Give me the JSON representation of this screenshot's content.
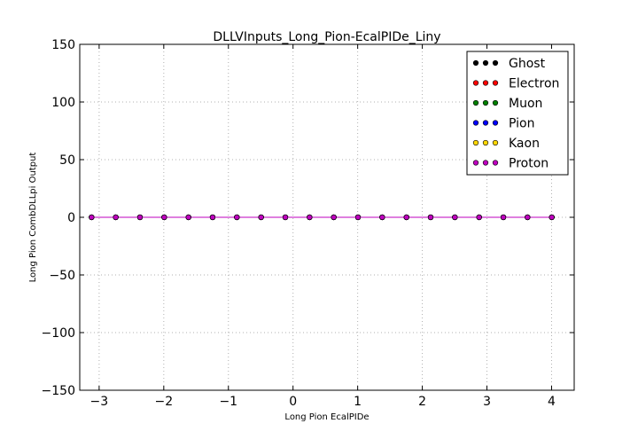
{
  "chart_data": {
    "type": "scatter",
    "title": "DLLVInputs_Long_Pion-EcalPIDe_Liny",
    "xlabel": "Long Pion EcalPIDe",
    "ylabel": "Long Pion CombDLLpi Output",
    "xlim": [
      -3.3,
      4.35
    ],
    "ylim": [
      -150,
      150
    ],
    "xticks": [
      -3,
      -2,
      -1,
      0,
      1,
      2,
      3,
      4
    ],
    "xtick_labels": [
      "−3",
      "−2",
      "−1",
      "0",
      "1",
      "2",
      "3",
      "4"
    ],
    "yticks": [
      -150,
      -100,
      -50,
      0,
      50,
      100,
      150
    ],
    "ytick_labels": [
      "−150",
      "−100",
      "−50",
      "0",
      "50",
      "100",
      "150"
    ],
    "grid": true,
    "legend_position": "top-right",
    "x": [
      -3.117,
      -2.743,
      -2.368,
      -1.993,
      -1.618,
      -1.244,
      -0.869,
      -0.494,
      -0.119,
      0.256,
      0.63,
      1.005,
      1.38,
      1.755,
      2.129,
      2.504,
      2.879,
      3.254,
      3.628,
      4.003
    ],
    "series": [
      {
        "name": "Ghost",
        "color": "#000000",
        "values": [
          0,
          0,
          0,
          0,
          0,
          0,
          0,
          0,
          0,
          0,
          0,
          0,
          0,
          0,
          0,
          0,
          0,
          0,
          0,
          0
        ]
      },
      {
        "name": "Electron",
        "color": "#ff0000",
        "values": [
          0,
          0,
          0,
          0,
          0,
          0,
          0,
          0,
          0,
          0,
          0,
          0,
          0,
          0,
          0,
          0,
          0,
          0,
          0,
          0
        ]
      },
      {
        "name": "Muon",
        "color": "#008000",
        "values": [
          0,
          0,
          0,
          0,
          0,
          0,
          0,
          0,
          0,
          0,
          0,
          0,
          0,
          0,
          0,
          0,
          0,
          0,
          0,
          0
        ]
      },
      {
        "name": "Pion",
        "color": "#0000ff",
        "values": [
          0,
          0,
          0,
          0,
          0,
          0,
          0,
          0,
          0,
          0,
          0,
          0,
          0,
          0,
          0,
          0,
          0,
          0,
          0,
          0
        ]
      },
      {
        "name": "Kaon",
        "color": "#ffd700",
        "values": [
          0,
          0,
          0,
          0,
          0,
          0,
          0,
          0,
          0,
          0,
          0,
          0,
          0,
          0,
          0,
          0,
          0,
          0,
          0,
          0
        ]
      },
      {
        "name": "Proton",
        "color": "#bf00bf",
        "values": [
          0,
          0,
          0,
          0,
          0,
          0,
          0,
          0,
          0,
          0,
          0,
          0,
          0,
          0,
          0,
          0,
          0,
          0,
          0,
          0
        ]
      }
    ]
  }
}
